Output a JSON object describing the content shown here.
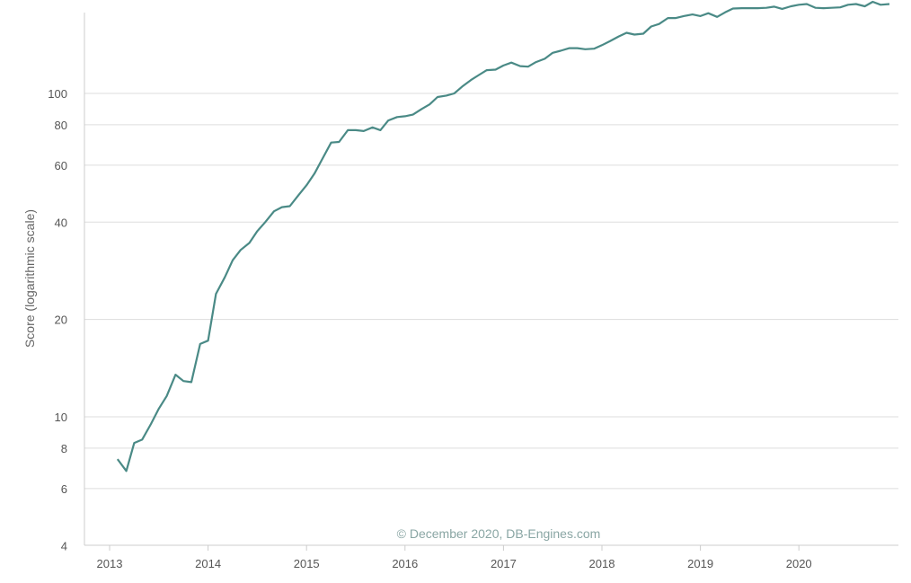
{
  "chart_data": {
    "type": "line",
    "title": "",
    "ylabel": "Score (logarithmic scale)",
    "xlabel": "",
    "yscale": "log",
    "ylim": [
      4,
      200
    ],
    "xlim": [
      2012.97,
      2021.07
    ],
    "grid": "horizontal",
    "line_color": "#4a8a86",
    "copyright": "© December 2020, DB-Engines.com",
    "yticks": [
      {
        "value": 4,
        "label": "4"
      },
      {
        "value": 6,
        "label": "6"
      },
      {
        "value": 8,
        "label": "8"
      },
      {
        "value": 10,
        "label": "10"
      },
      {
        "value": 20,
        "label": "20"
      },
      {
        "value": 40,
        "label": "40"
      },
      {
        "value": 60,
        "label": "60"
      },
      {
        "value": 80,
        "label": "80"
      },
      {
        "value": 100,
        "label": "100"
      }
    ],
    "xticks": [
      {
        "value": 2013,
        "label": "2013"
      },
      {
        "value": 2014,
        "label": "2014"
      },
      {
        "value": 2015,
        "label": "2015"
      },
      {
        "value": 2016,
        "label": "2016"
      },
      {
        "value": 2017,
        "label": "2017"
      },
      {
        "value": 2018,
        "label": "2018"
      },
      {
        "value": 2019,
        "label": "2019"
      },
      {
        "value": 2020,
        "label": "2020"
      }
    ],
    "series": [
      {
        "points": [
          [
            2013.08,
            7.4
          ],
          [
            2013.17,
            6.8
          ],
          [
            2013.25,
            8.3
          ],
          [
            2013.33,
            8.5
          ],
          [
            2013.42,
            9.5
          ],
          [
            2013.5,
            10.6
          ],
          [
            2013.58,
            11.6
          ],
          [
            2013.67,
            13.5
          ],
          [
            2013.75,
            12.9
          ],
          [
            2013.83,
            12.8
          ],
          [
            2013.92,
            16.8
          ],
          [
            2014.0,
            17.2
          ],
          [
            2014.08,
            24.0
          ],
          [
            2014.17,
            27.0
          ],
          [
            2014.25,
            30.5
          ],
          [
            2014.33,
            32.8
          ],
          [
            2014.42,
            34.5
          ],
          [
            2014.5,
            37.5
          ],
          [
            2014.58,
            40.0
          ],
          [
            2014.67,
            43.2
          ],
          [
            2014.75,
            44.5
          ],
          [
            2014.83,
            44.8
          ],
          [
            2014.92,
            48.5
          ],
          [
            2015.0,
            52.0
          ],
          [
            2015.08,
            56.5
          ],
          [
            2015.17,
            63.5
          ],
          [
            2015.25,
            70.5
          ],
          [
            2015.33,
            70.8
          ],
          [
            2015.42,
            77.0
          ],
          [
            2015.5,
            77.0
          ],
          [
            2015.58,
            76.5
          ],
          [
            2015.67,
            78.5
          ],
          [
            2015.75,
            77.0
          ],
          [
            2015.83,
            82.5
          ],
          [
            2015.92,
            84.5
          ],
          [
            2016.0,
            85.0
          ],
          [
            2016.08,
            86.0
          ],
          [
            2016.17,
            89.5
          ],
          [
            2016.25,
            92.5
          ],
          [
            2016.33,
            97.5
          ],
          [
            2016.42,
            98.5
          ],
          [
            2016.5,
            100.0
          ],
          [
            2016.58,
            105.0
          ],
          [
            2016.67,
            110.0
          ],
          [
            2016.75,
            114.0
          ],
          [
            2016.83,
            118.0
          ],
          [
            2016.92,
            118.5
          ],
          [
            2017.0,
            122.0
          ],
          [
            2017.08,
            124.5
          ],
          [
            2017.17,
            121.5
          ],
          [
            2017.25,
            121.0
          ],
          [
            2017.33,
            125.0
          ],
          [
            2017.42,
            128.0
          ],
          [
            2017.5,
            133.5
          ],
          [
            2017.58,
            135.5
          ],
          [
            2017.67,
            138.0
          ],
          [
            2017.75,
            138.0
          ],
          [
            2017.83,
            137.0
          ],
          [
            2017.92,
            137.5
          ],
          [
            2018.0,
            141.0
          ],
          [
            2018.08,
            145.0
          ],
          [
            2018.17,
            150.0
          ],
          [
            2018.25,
            154.0
          ],
          [
            2018.33,
            152.0
          ],
          [
            2018.42,
            153.0
          ],
          [
            2018.5,
            161.0
          ],
          [
            2018.58,
            164.0
          ],
          [
            2018.67,
            171.0
          ],
          [
            2018.75,
            171.0
          ],
          [
            2018.83,
            173.5
          ],
          [
            2018.92,
            175.5
          ],
          [
            2019.0,
            173.5
          ],
          [
            2019.08,
            177.0
          ],
          [
            2019.17,
            172.5
          ],
          [
            2019.25,
            178.0
          ],
          [
            2019.33,
            183.0
          ],
          [
            2019.42,
            183.5
          ],
          [
            2019.5,
            183.5
          ],
          [
            2019.58,
            183.5
          ],
          [
            2019.67,
            184.0
          ],
          [
            2019.75,
            185.5
          ],
          [
            2019.83,
            182.5
          ],
          [
            2019.92,
            186.0
          ],
          [
            2020.0,
            188.0
          ],
          [
            2020.08,
            189.0
          ],
          [
            2020.17,
            184.0
          ],
          [
            2020.25,
            183.5
          ],
          [
            2020.33,
            184.0
          ],
          [
            2020.42,
            184.5
          ],
          [
            2020.5,
            188.0
          ],
          [
            2020.58,
            189.0
          ],
          [
            2020.67,
            186.0
          ],
          [
            2020.75,
            192.0
          ],
          [
            2020.83,
            188.0
          ],
          [
            2020.92,
            189.0
          ]
        ]
      }
    ]
  }
}
